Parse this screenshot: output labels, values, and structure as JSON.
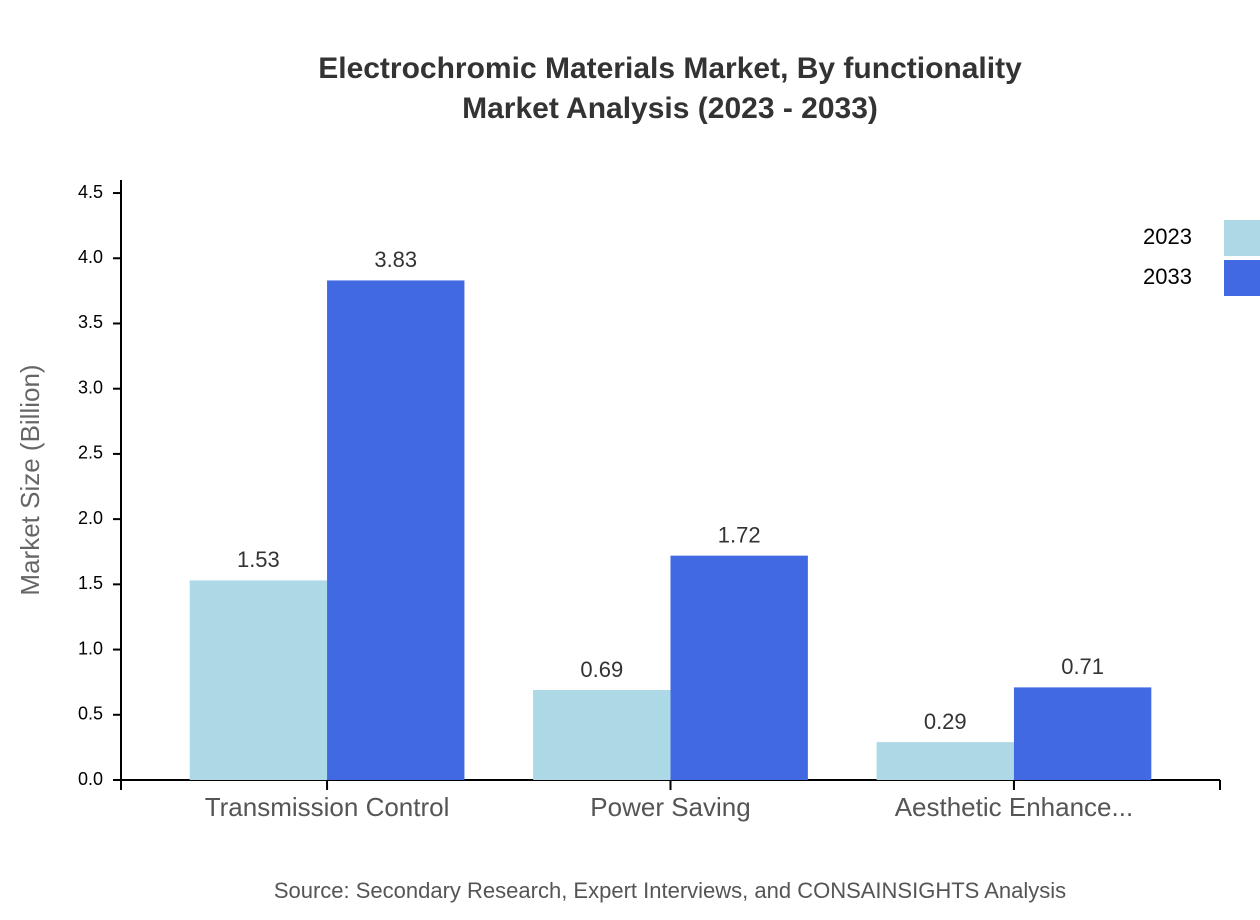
{
  "chart_data": {
    "type": "bar",
    "title": "Electrochromic Materials Market, By functionality",
    "subtitle": "Market Analysis (2023 - 2033)",
    "y_label": "Market Size (Billion)",
    "source": "Source: Secondary Research, Expert Interviews, and CONSAINSIGHTS Analysis",
    "categories": [
      "Transmission Control",
      "Power Saving",
      "Aesthetic Enhance..."
    ],
    "series": [
      {
        "name": "2023",
        "color": "#add8e6",
        "values": [
          1.53,
          0.69,
          0.29
        ]
      },
      {
        "name": "2033",
        "color": "#4169e1",
        "values": [
          3.83,
          1.72,
          0.71
        ]
      }
    ],
    "ylim": [
      0,
      4.6
    ],
    "yticks": [
      {
        "value": 0,
        "label": "0.0"
      },
      0.5,
      {
        "value": 1,
        "label": "1.0"
      },
      1.5,
      {
        "value": 2,
        "label": "2.0"
      },
      2.5,
      {
        "value": 3,
        "label": "3.0"
      },
      3.5,
      {
        "value": 4,
        "label": "4.0"
      },
      4.5
    ],
    "legend": "top-right"
  }
}
